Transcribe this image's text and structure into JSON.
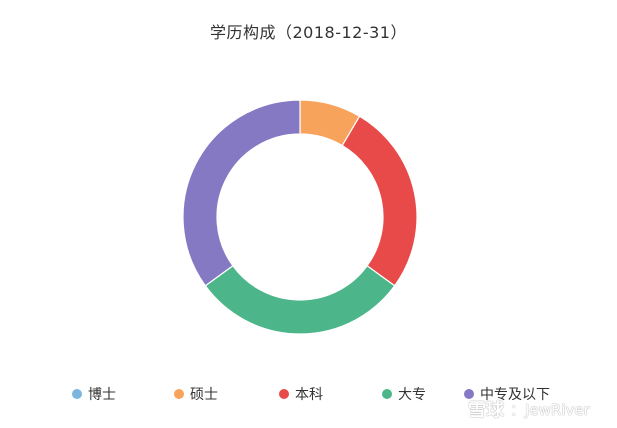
{
  "chart_data": {
    "type": "pie",
    "title": "学历构成（2018-12-31）",
    "categories": [
      "博士",
      "硕士",
      "本科",
      "大专",
      "中专及以下"
    ],
    "values": [
      0,
      8.5,
      26.5,
      30.0,
      35.0
    ],
    "colors": [
      "#7cb5e0",
      "#f7a35c",
      "#e84a4a",
      "#4cb68a",
      "#8579c4"
    ],
    "legend_position": "bottom",
    "donut": true
  },
  "watermark": {
    "brand": "雪球",
    "user": "：JewRiver"
  }
}
